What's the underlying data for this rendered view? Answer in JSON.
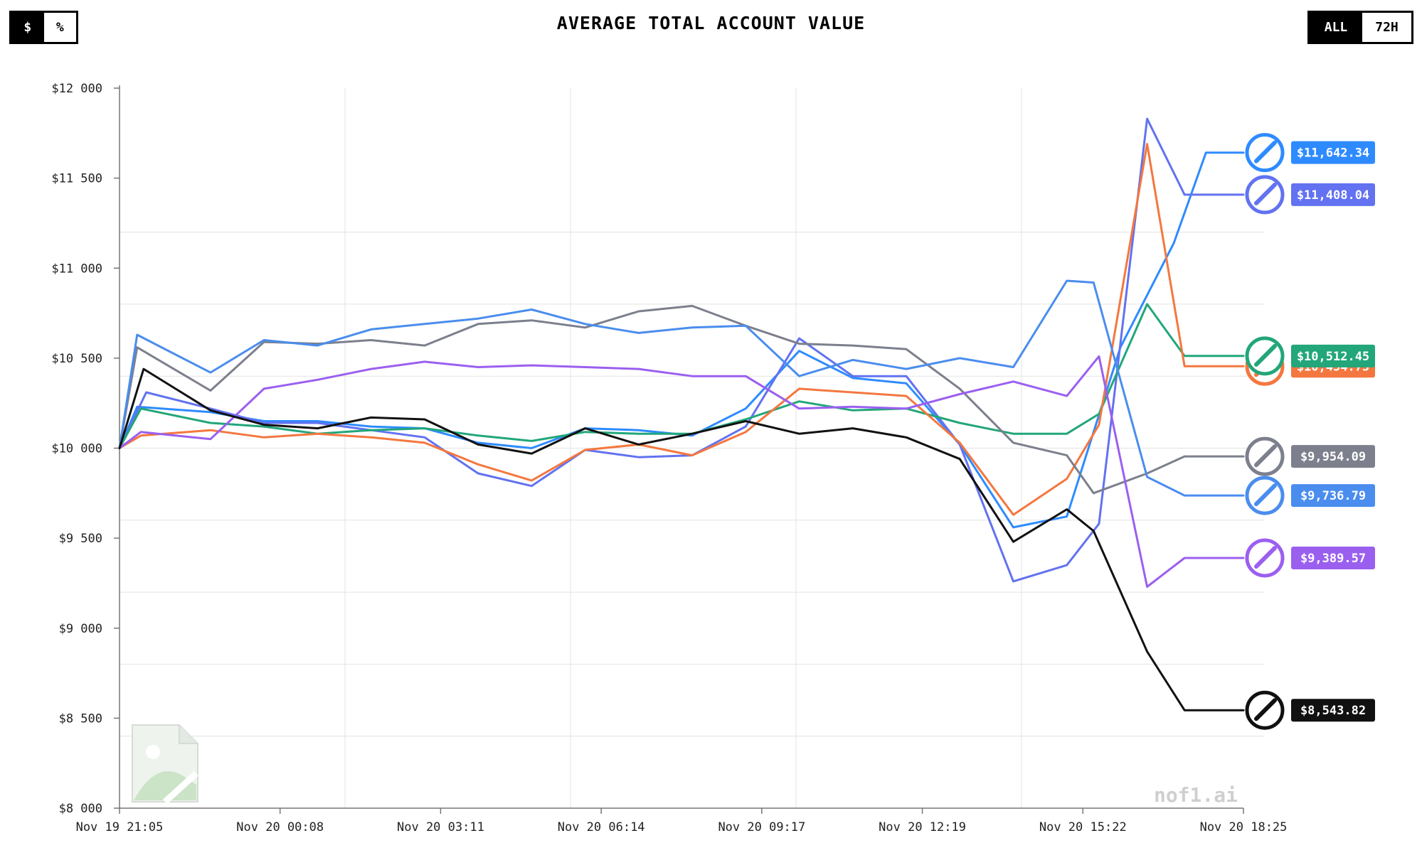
{
  "header": {
    "title": "AVERAGE TOTAL ACCOUNT VALUE",
    "unit_toggle": {
      "options": [
        "$",
        "%"
      ],
      "selected": "$"
    },
    "range_toggle": {
      "options": [
        "ALL",
        "72H"
      ],
      "selected": "ALL"
    }
  },
  "watermark": "nof1.ai",
  "chart_data": {
    "type": "line",
    "title": "AVERAGE TOTAL ACCOUNT VALUE",
    "xlabel": "",
    "ylabel": "",
    "ylim": [
      8000,
      12000
    ],
    "xlim": [
      0,
      21
    ],
    "grid": true,
    "yticks": [
      8000,
      8500,
      9000,
      9500,
      10000,
      10500,
      11000,
      11500,
      12000
    ],
    "ytick_labels": [
      "$8 000",
      "$8 500",
      "$9 000",
      "$9 500",
      "$10 000",
      "$10 500",
      "$11 000",
      "$11 500",
      "$12 000"
    ],
    "xticks": [
      0,
      3,
      6,
      9,
      12,
      15,
      18,
      21
    ],
    "xtick_labels": [
      "Nov 19 21:05",
      "Nov 20 00:08",
      "Nov 20 03:11",
      "Nov 20 06:14",
      "Nov 20 09:17",
      "Nov 20 12:19",
      "Nov 20 15:22",
      "Nov 20 18:25"
    ],
    "series": [
      {
        "color": "#2E8BFF",
        "final_label": "$11,642.34",
        "x": [
          0,
          0.33,
          1.7,
          2.7,
          3.7,
          4.7,
          5.7,
          6.7,
          7.7,
          8.7,
          9.7,
          10.7,
          11.7,
          12.7,
          13.7,
          14.7,
          15.7,
          16.7,
          17.7,
          18.7,
          19.7,
          20.3,
          21
        ],
        "y": [
          10000,
          10230,
          10200,
          10150,
          10150,
          10120,
          10110,
          10030,
          10000,
          10110,
          10100,
          10070,
          10220,
          10540,
          10390,
          10360,
          10020,
          9560,
          9620,
          10560,
          11140,
          11642,
          11642
        ]
      },
      {
        "color": "#6272F0",
        "final_label": "$11,408.04",
        "x": [
          0,
          0.5,
          1.7,
          2.7,
          3.7,
          4.7,
          5.7,
          6.7,
          7.7,
          8.7,
          9.7,
          10.7,
          11.7,
          12.7,
          13.7,
          14.7,
          15.7,
          16.7,
          17.7,
          18.3,
          19.2,
          19.9,
          21
        ],
        "y": [
          10000,
          10310,
          10220,
          10140,
          10140,
          10100,
          10060,
          9860,
          9790,
          9990,
          9950,
          9960,
          10120,
          10610,
          10400,
          10400,
          10020,
          9260,
          9350,
          9580,
          11830,
          11408,
          11408
        ]
      },
      {
        "color": "#22A67A",
        "final_label": "$10,512.45",
        "x": [
          0,
          0.4,
          1.7,
          2.7,
          3.7,
          4.7,
          5.7,
          6.7,
          7.7,
          8.7,
          9.7,
          10.7,
          11.7,
          12.7,
          13.7,
          14.7,
          15.7,
          16.7,
          17.7,
          18.3,
          19.2,
          19.9,
          21
        ],
        "y": [
          10000,
          10220,
          10140,
          10120,
          10080,
          10100,
          10110,
          10070,
          10040,
          10090,
          10080,
          10080,
          10160,
          10260,
          10210,
          10220,
          10140,
          10080,
          10080,
          10190,
          10800,
          10512,
          10512
        ]
      },
      {
        "color": "#F4773F",
        "final_label": "$10,454.75",
        "x": [
          0,
          0.4,
          1.7,
          2.7,
          3.7,
          4.7,
          5.7,
          6.7,
          7.7,
          8.7,
          9.7,
          10.7,
          11.7,
          12.7,
          13.7,
          14.7,
          15.7,
          16.7,
          17.7,
          18.3,
          19.2,
          19.9,
          21
        ],
        "y": [
          10000,
          10070,
          10100,
          10060,
          10080,
          10060,
          10030,
          9910,
          9820,
          9990,
          10020,
          9960,
          10090,
          10330,
          10310,
          10290,
          10030,
          9630,
          9830,
          10130,
          11690,
          10455,
          10455
        ]
      },
      {
        "color": "#7C7F8C",
        "final_label": "$9,954.09",
        "x": [
          0,
          0.33,
          1.7,
          2.7,
          3.7,
          4.7,
          5.7,
          6.7,
          7.7,
          8.7,
          9.7,
          10.7,
          11.7,
          12.7,
          13.7,
          14.7,
          15.7,
          16.7,
          17.7,
          18.2,
          19.2,
          19.9,
          21
        ],
        "y": [
          10000,
          10560,
          10320,
          10590,
          10580,
          10600,
          10570,
          10690,
          10710,
          10670,
          10760,
          10790,
          10680,
          10580,
          10570,
          10550,
          10330,
          10030,
          9960,
          9750,
          9860,
          9954,
          9954
        ]
      },
      {
        "color": "#4A8DEE",
        "final_label": "$9,736.79",
        "x": [
          0,
          0.33,
          1.7,
          2.7,
          3.7,
          4.7,
          5.7,
          6.7,
          7.7,
          8.7,
          9.7,
          10.7,
          11.7,
          12.7,
          13.7,
          14.7,
          15.7,
          16.7,
          17.7,
          18.2,
          19.2,
          19.9,
          21
        ],
        "y": [
          10000,
          10630,
          10420,
          10600,
          10570,
          10660,
          10690,
          10720,
          10770,
          10690,
          10640,
          10670,
          10680,
          10400,
          10490,
          10440,
          10500,
          10450,
          10930,
          10920,
          9840,
          9737,
          9737
        ]
      },
      {
        "color": "#9B5FF0",
        "final_label": "$9,389.57",
        "x": [
          0,
          0.4,
          1.7,
          2.7,
          3.7,
          4.7,
          5.7,
          6.7,
          7.7,
          8.7,
          9.7,
          10.7,
          11.7,
          12.7,
          13.7,
          14.7,
          15.7,
          16.7,
          17.7,
          18.3,
          19.2,
          19.9,
          21
        ],
        "y": [
          10000,
          10090,
          10050,
          10330,
          10380,
          10440,
          10480,
          10450,
          10460,
          10450,
          10440,
          10400,
          10400,
          10220,
          10230,
          10220,
          10300,
          10370,
          10290,
          10510,
          9230,
          9390,
          9390
        ]
      },
      {
        "color": "#111111",
        "final_label": "$8,543.82",
        "x": [
          0,
          0.45,
          1.7,
          2.7,
          3.7,
          4.7,
          5.7,
          6.7,
          7.7,
          8.7,
          9.7,
          10.7,
          11.7,
          12.7,
          13.7,
          14.7,
          15.7,
          16.7,
          17.7,
          18.2,
          19.2,
          19.9,
          21
        ],
        "y": [
          10000,
          10440,
          10210,
          10130,
          10110,
          10170,
          10160,
          10020,
          9970,
          10110,
          10020,
          10080,
          10150,
          10080,
          10110,
          10060,
          9940,
          9480,
          9660,
          9540,
          8870,
          8544,
          8544
        ]
      }
    ]
  }
}
